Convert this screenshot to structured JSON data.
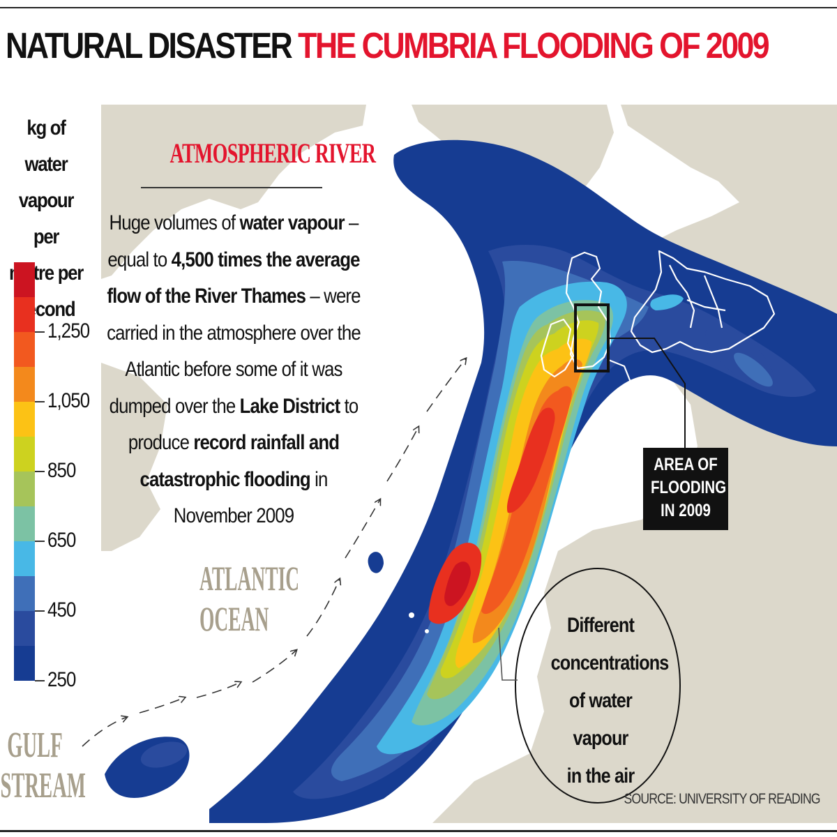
{
  "headline": {
    "part1": "NATURAL DISASTER",
    "part2": "THE CUMBRIA FLOODING OF 2009"
  },
  "legend": {
    "title_lines": [
      "kg of water",
      "vapour per",
      "metre per",
      "second"
    ],
    "scale": [
      {
        "color": "#cc1421"
      },
      {
        "color": "#e8301f"
      },
      {
        "color": "#f2591f"
      },
      {
        "color": "#f3891c"
      },
      {
        "color": "#fcc215"
      },
      {
        "color": "#cdd21f"
      },
      {
        "color": "#a6c45a"
      },
      {
        "color": "#7cc2a4"
      },
      {
        "color": "#48b8e6"
      },
      {
        "color": "#3f6fb8"
      },
      {
        "color": "#2a4b9e"
      },
      {
        "color": "#163c92"
      }
    ],
    "ticks": [
      {
        "label": "1,250",
        "value": 1250
      },
      {
        "label": "1,050",
        "value": 1050
      },
      {
        "label": "850",
        "value": 850
      },
      {
        "label": "650",
        "value": 650
      },
      {
        "label": "450",
        "value": 450
      },
      {
        "label": "250",
        "value": 250
      }
    ]
  },
  "intro": {
    "title": "ATMOSPHERIC RIVER",
    "t1": "Huge volumes of ",
    "b1": "water vapour",
    "t2": " – equal to ",
    "b2": "4,500 times the average flow of the River Thames",
    "t3": " – were carried in the atmosphere over the Atlantic before some of it was dumped over the ",
    "b3": "Lake District",
    "t4": " to produce ",
    "b4": "record rainfall and catastrophic flooding",
    "t5": " in November 2009"
  },
  "map_labels": {
    "ocean": [
      "ATLANTIC",
      "OCEAN"
    ],
    "gulf": [
      "GULF",
      "STREAM"
    ],
    "flood_area": [
      "AREA OF",
      "FLOODING",
      "IN 2009"
    ],
    "concentrations": [
      "Different",
      "concentrations",
      "of water vapour",
      "in the air"
    ]
  },
  "colors": {
    "land": "#dcd8cb",
    "sea": "#ffffff",
    "headline_red": "#e3142d",
    "label_tan": "#a79f8c"
  },
  "source": "SOURCE: UNIVERSITY OF READING"
}
